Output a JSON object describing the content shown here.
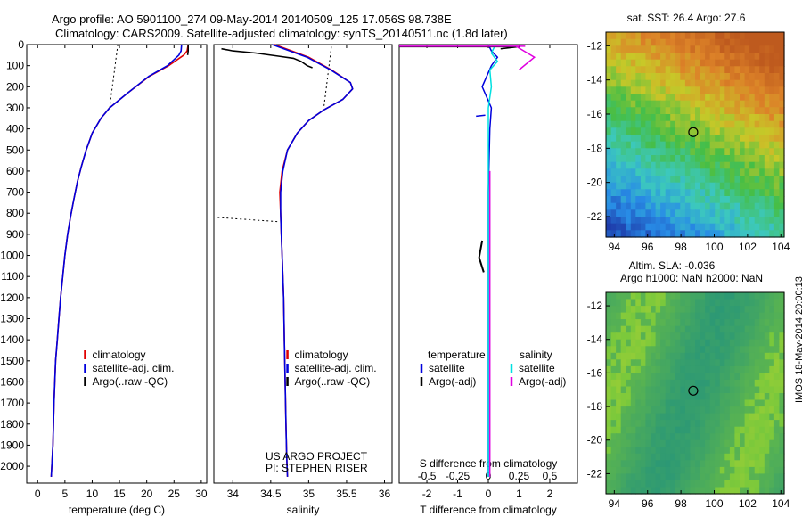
{
  "header": {
    "line1": "Argo profile: AO 5901100_274 09-May-2014 20140509_125 17.056S 98.738E",
    "line2": "Climatology: CARS2009. Satellite-adjusted climatology: synTS_20140511.nc (1.8d later)"
  },
  "side_label": "IMOS 18-May-2014 20:00:13",
  "colors": {
    "climatology": "#e00000",
    "satellite_adj": "#0000dd",
    "argo": "#000000",
    "salinity_satellite": "#00e0e0",
    "salinity_argo": "#e000e0"
  },
  "chart_data": [
    {
      "type": "line",
      "panel": "temperature",
      "xlabel": "temperature (deg C)",
      "ylabel": "",
      "xlim": [
        -2,
        31
      ],
      "ylim": [
        2080,
        0
      ],
      "xticks": [
        0,
        5,
        10,
        15,
        20,
        25,
        30
      ],
      "yticks": [
        0,
        100,
        200,
        300,
        400,
        500,
        600,
        700,
        800,
        900,
        1000,
        1100,
        1200,
        1300,
        1400,
        1500,
        1600,
        1700,
        1800,
        1900,
        2000
      ],
      "legend": [
        "climatology",
        "satellite-adj. clim.",
        "Argo(..raw -QC)"
      ],
      "legend_position": "lower-right",
      "series": [
        {
          "name": "climatology",
          "x": [
            27.6,
            27.4,
            26.8,
            24.0,
            20.5,
            16.5,
            13.2,
            11.6,
            10.0,
            8.9,
            8.0,
            7.3,
            6.6,
            6.0,
            5.5,
            5.0,
            4.6,
            4.2,
            3.9,
            3.6,
            3.3,
            3.0,
            2.8,
            2.5
          ],
          "y": [
            0,
            30,
            50,
            100,
            150,
            230,
            300,
            350,
            420,
            500,
            580,
            650,
            740,
            820,
            900,
            1000,
            1100,
            1200,
            1300,
            1400,
            1500,
            1700,
            1900,
            2050
          ]
        },
        {
          "name": "satellite-adj. clim.",
          "x": [
            26.4,
            26.3,
            25.9,
            23.8,
            20.4,
            16.5,
            13.2,
            11.6,
            10.0,
            8.9,
            8.0,
            7.3,
            6.6,
            6.0,
            5.5,
            5.0,
            4.6,
            4.2,
            3.9,
            3.6,
            3.3,
            3.0,
            2.8,
            2.5
          ],
          "y": [
            0,
            30,
            50,
            100,
            150,
            230,
            300,
            350,
            420,
            500,
            580,
            650,
            740,
            820,
            900,
            1000,
            1100,
            1200,
            1300,
            1400,
            1500,
            1700,
            1900,
            2050
          ]
        },
        {
          "name": "Argo(..raw -QC)",
          "x": [
            27.6,
            27.6,
            27.5
          ],
          "y": [
            0,
            30,
            50
          ]
        }
      ]
    },
    {
      "type": "line",
      "panel": "salinity",
      "xlabel": "salinity",
      "xlim": [
        33.75,
        36.1
      ],
      "ylim": [
        2080,
        0
      ],
      "xticks": [
        34,
        34.5,
        35,
        35.5,
        36
      ],
      "legend": [
        "climatology",
        "satellite-adj. clim.",
        "Argo(..raw -QC)"
      ],
      "legend_position": "lower-right",
      "annotations": [
        "US ARGO PROJECT",
        "PI: STEPHEN RISER"
      ],
      "series": [
        {
          "name": "climatology",
          "x": [
            34.55,
            35.0,
            35.3,
            35.55,
            35.58,
            35.45,
            35.2,
            35.0,
            34.85,
            34.72,
            34.65,
            34.62,
            34.63,
            34.64,
            34.65,
            34.67,
            34.68,
            34.69,
            34.7,
            34.71,
            34.72
          ],
          "y": [
            0,
            60,
            120,
            180,
            210,
            260,
            310,
            360,
            420,
            500,
            600,
            700,
            800,
            900,
            1000,
            1200,
            1400,
            1600,
            1800,
            1950,
            2050
          ]
        },
        {
          "name": "satellite-adj. clim.",
          "x": [
            34.52,
            34.98,
            35.29,
            35.55,
            35.58,
            35.45,
            35.2,
            35.0,
            34.85,
            34.72,
            34.66,
            34.63,
            34.63,
            34.64,
            34.65,
            34.67,
            34.68,
            34.69,
            34.7,
            34.71,
            34.72
          ],
          "y": [
            0,
            60,
            120,
            180,
            210,
            260,
            310,
            360,
            420,
            500,
            600,
            700,
            800,
            900,
            1000,
            1200,
            1400,
            1600,
            1800,
            1950,
            2050
          ]
        },
        {
          "name": "Argo(..raw -QC)",
          "x": [
            33.85,
            34.0,
            34.3,
            34.6,
            34.8,
            34.9,
            34.98,
            35.05
          ],
          "y": [
            20,
            30,
            40,
            55,
            65,
            80,
            100,
            110
          ]
        }
      ]
    },
    {
      "type": "line",
      "panel": "difference",
      "xlabel": "T difference from climatology",
      "xlabel_top": "S difference from climatology",
      "xlim": [
        -2.9,
        2.9
      ],
      "ylim": [
        2080,
        0
      ],
      "xticks": [
        -2,
        -1,
        0,
        1,
        2
      ],
      "xticks_s": [
        -0.5,
        -0.25,
        0,
        0.25,
        0.5
      ],
      "legend_temperature": [
        "temperature",
        "satellite",
        "Argo(-adj)"
      ],
      "legend_salinity": [
        "salinity",
        "satellite",
        "Argo(-adj)"
      ],
      "series": [
        {
          "name": "satellite",
          "x": [
            0,
            0.1,
            0.3,
            0.1,
            -0.2,
            0.1,
            0.05,
            0,
            0,
            0,
            0
          ],
          "y": [
            0,
            30,
            60,
            100,
            200,
            300,
            400,
            700,
            1000,
            1500,
            2050
          ]
        },
        {
          "name": "Argo(-adj)",
          "x": [
            -2.9,
            1.0,
            0.4
          ],
          "y": [
            10,
            10,
            20
          ]
        }
      ]
    },
    {
      "type": "heatmap",
      "panel": "sst-map",
      "title": "sat. SST: 26.4  Argo: 27.6",
      "xlim": [
        93.5,
        104.2
      ],
      "ylim": [
        -23.2,
        -11.2
      ],
      "xticks": [
        94,
        96,
        98,
        100,
        102,
        104
      ],
      "yticks": [
        -12,
        -14,
        -16,
        -18,
        -20,
        -22
      ],
      "marker": {
        "lon": 98.738,
        "lat": -17.056
      }
    },
    {
      "type": "heatmap",
      "panel": "sla-map",
      "title": "Altim. SLA: -0.036",
      "subtitle": "Argo h1000: NaN  h2000: NaN",
      "xlim": [
        93.5,
        104.2
      ],
      "ylim": [
        -23.2,
        -11.2
      ],
      "xticks": [
        94,
        96,
        98,
        100,
        102,
        104
      ],
      "yticks": [
        -12,
        -14,
        -16,
        -18,
        -20,
        -22
      ],
      "marker": {
        "lon": 98.738,
        "lat": -17.056
      }
    }
  ]
}
